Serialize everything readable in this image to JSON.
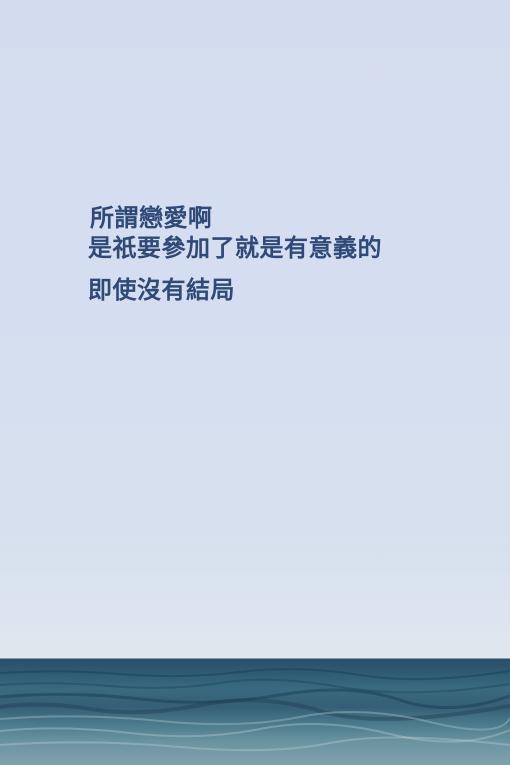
{
  "quote": {
    "lines": [
      "所謂戀愛啊",
      "是祇要參加了就是有意義的",
      "即使沒有結局"
    ]
  },
  "colors": {
    "sky": "#d5def0",
    "text": "#2f4a78",
    "sea_dark": "#2a5068",
    "sea_light": "#7ea3ad"
  }
}
